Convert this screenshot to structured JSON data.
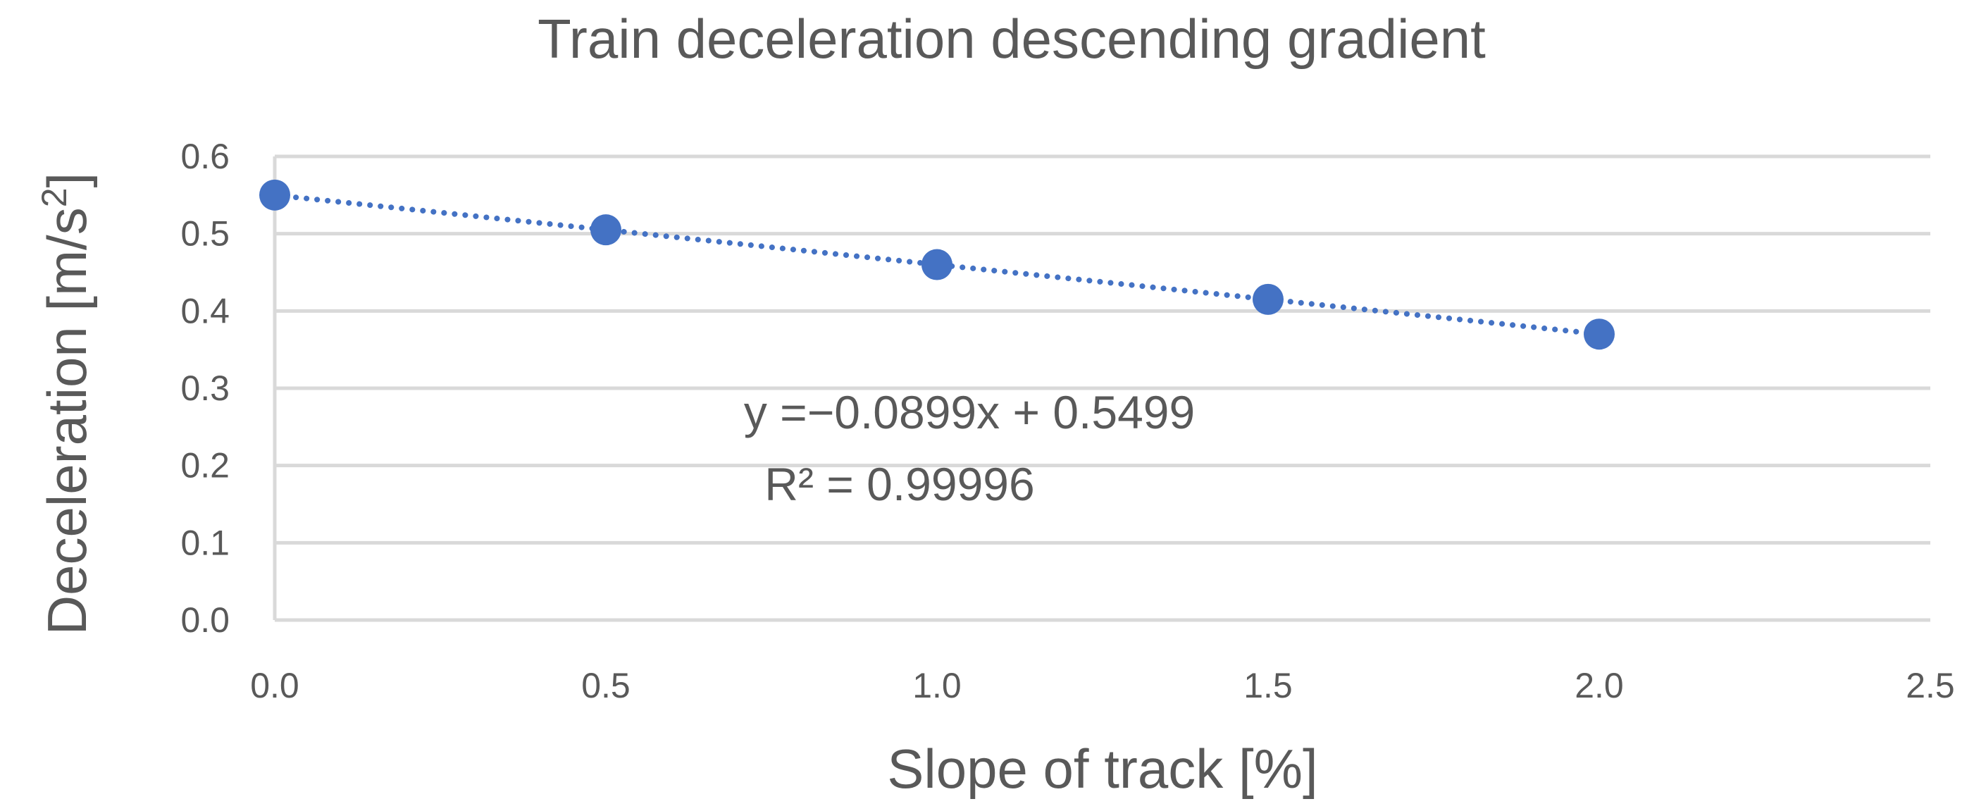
{
  "chart_data": {
    "type": "scatter",
    "title": "Train deceleration descending gradient",
    "xlabel": "Slope of track [%]",
    "ylabel": "Deceleration  [m/s²]",
    "ylabel_main": "Deceleration  [m/s",
    "ylabel_sup": "2",
    "ylabel_end": "]",
    "xlim": [
      0,
      2.5
    ],
    "ylim": [
      0,
      0.6
    ],
    "x_ticks": [
      0.0,
      0.5,
      1.0,
      1.5,
      2.0,
      2.5
    ],
    "x_tick_labels": [
      "0.0",
      "0.5",
      "1.0",
      "1.5",
      "2.0",
      "2.5"
    ],
    "y_ticks": [
      0.0,
      0.1,
      0.2,
      0.3,
      0.4,
      0.5,
      0.6
    ],
    "y_tick_labels": [
      "0.0",
      "0.1",
      "0.2",
      "0.3",
      "0.4",
      "0.5",
      "0.6"
    ],
    "grid": true,
    "series": [
      {
        "name": "Deceleration",
        "x": [
          0.0,
          0.5,
          1.0,
          1.5,
          2.0
        ],
        "y": [
          0.55,
          0.505,
          0.46,
          0.415,
          0.37
        ],
        "color": "#4472c4"
      }
    ],
    "trendline": {
      "type": "linear",
      "slope": -0.0899,
      "intercept": 0.5499,
      "x_range": [
        0.0,
        2.0
      ],
      "color": "#4472c4",
      "style": "dotted"
    },
    "annotations": {
      "equation": "y =−0.0899x + 0.5499",
      "r_squared": "R² = 0.99996"
    }
  }
}
